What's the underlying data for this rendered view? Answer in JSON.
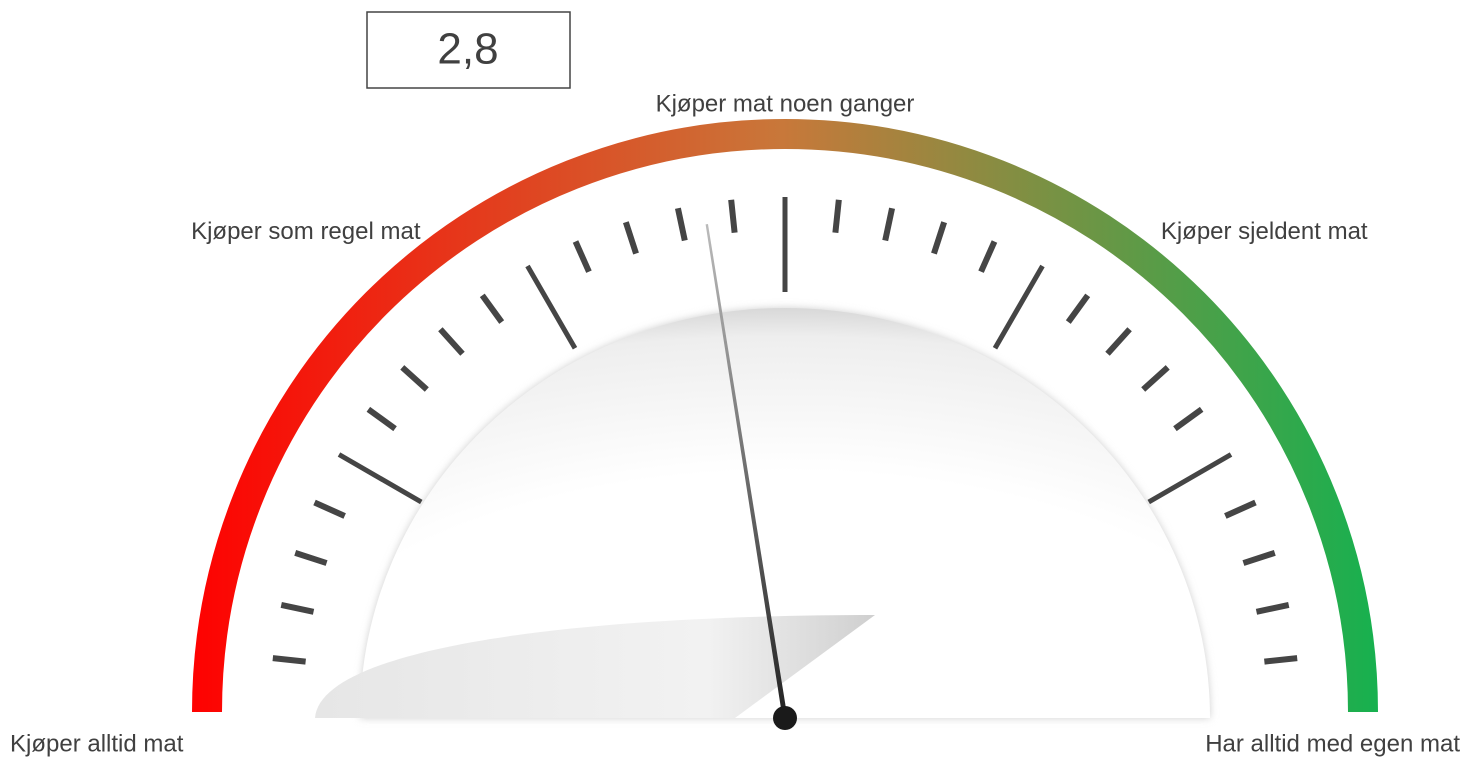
{
  "chart_data": {
    "type": "gauge",
    "value": 2.8,
    "value_label": "2,8",
    "ylim": [
      1,
      5
    ],
    "labels": [
      {
        "value": 1,
        "label": "Kjøper alltid mat"
      },
      {
        "value": 2,
        "label": "Kjøper som regel mat"
      },
      {
        "value": 3,
        "label": "Kjøper mat noen ganger"
      },
      {
        "value": 4,
        "label": "Kjøper sjeldent mat"
      },
      {
        "value": 5,
        "label": "Har alltid med egen mat"
      }
    ],
    "major_tick_count": 7,
    "minor_ticks_per_major": 4,
    "colors": [
      "#ff0000",
      "#c8783a",
      "#16b14f"
    ]
  }
}
